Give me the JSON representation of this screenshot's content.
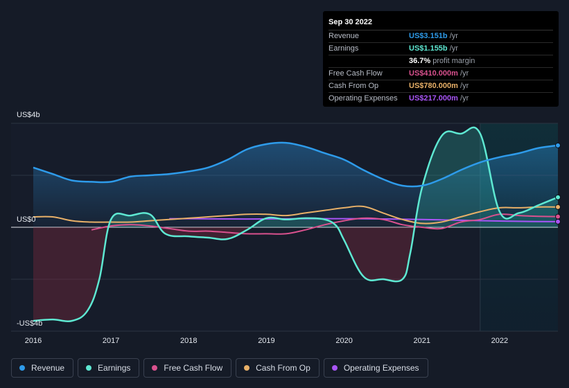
{
  "tooltip": {
    "date": "Sep 30 2022",
    "rows": [
      {
        "label": "Revenue",
        "value": "US$3.151b",
        "unit": " /yr",
        "color": "#2e9bea"
      },
      {
        "label": "Earnings",
        "value": "US$1.155b",
        "unit": " /yr",
        "color": "#5ee8d2"
      },
      {
        "label": "",
        "value": "36.7%",
        "unit": " profit margin",
        "color": "#ffffff"
      },
      {
        "label": "Free Cash Flow",
        "value": "US$410.000m",
        "unit": " /yr",
        "color": "#d9518e"
      },
      {
        "label": "Cash From Op",
        "value": "US$780.000m",
        "unit": " /yr",
        "color": "#e8b068"
      },
      {
        "label": "Operating Expenses",
        "value": "US$217.000m",
        "unit": " /yr",
        "color": "#a855f7"
      }
    ]
  },
  "legend": [
    {
      "label": "Revenue",
      "color": "#2e9bea"
    },
    {
      "label": "Earnings",
      "color": "#5ee8d2"
    },
    {
      "label": "Free Cash Flow",
      "color": "#d9518e"
    },
    {
      "label": "Cash From Op",
      "color": "#e8b068"
    },
    {
      "label": "Operating Expenses",
      "color": "#a855f7"
    }
  ],
  "chart_data": {
    "type": "area",
    "title": "",
    "y_unit": "US$ billions",
    "ylim": [
      -4,
      4
    ],
    "xlim": [
      2016.0,
      2022.75
    ],
    "y_tick_labels": [
      {
        "value": 4,
        "label": "US$4b"
      },
      {
        "value": 0,
        "label": "US$0"
      },
      {
        "value": -4,
        "label": "-US$4b"
      }
    ],
    "x_ticks": [
      {
        "value": 2016,
        "label": "2016"
      },
      {
        "value": 2017,
        "label": "2017"
      },
      {
        "value": 2018,
        "label": "2018"
      },
      {
        "value": 2019,
        "label": "2019"
      },
      {
        "value": 2020,
        "label": "2020"
      },
      {
        "value": 2021,
        "label": "2021"
      },
      {
        "value": 2022,
        "label": "2022"
      }
    ],
    "forecast_start": 2021.75,
    "series": [
      {
        "name": "Revenue",
        "color": "#2e9bea",
        "fill": true,
        "x": [
          2016.0,
          2016.25,
          2016.5,
          2016.75,
          2017.0,
          2017.25,
          2017.5,
          2017.75,
          2018.0,
          2018.25,
          2018.5,
          2018.75,
          2019.0,
          2019.25,
          2019.5,
          2019.75,
          2020.0,
          2020.25,
          2020.5,
          2020.75,
          2021.0,
          2021.25,
          2021.5,
          2021.75,
          2022.0,
          2022.25,
          2022.5,
          2022.75
        ],
        "y": [
          2.3,
          2.05,
          1.8,
          1.75,
          1.75,
          1.95,
          2.0,
          2.05,
          2.15,
          2.3,
          2.6,
          3.0,
          3.2,
          3.25,
          3.1,
          2.85,
          2.6,
          2.2,
          1.85,
          1.6,
          1.6,
          1.85,
          2.2,
          2.5,
          2.7,
          2.85,
          3.05,
          3.151
        ]
      },
      {
        "name": "Earnings",
        "color": "#5ee8d2",
        "fill": true,
        "x": [
          2016.0,
          2016.25,
          2016.5,
          2016.7,
          2016.85,
          2017.0,
          2017.25,
          2017.5,
          2017.7,
          2018.0,
          2018.25,
          2018.5,
          2018.75,
          2019.0,
          2019.25,
          2019.5,
          2019.75,
          2019.9,
          2020.0,
          2020.25,
          2020.5,
          2020.75,
          2020.85,
          2021.0,
          2021.25,
          2021.5,
          2021.75,
          2022.0,
          2022.25,
          2022.5,
          2022.75
        ],
        "y": [
          -3.6,
          -3.55,
          -3.6,
          -3.2,
          -2.0,
          0.3,
          0.45,
          0.5,
          -0.25,
          -0.35,
          -0.4,
          -0.45,
          -0.1,
          0.35,
          0.3,
          0.35,
          0.3,
          0.05,
          -0.5,
          -1.9,
          -2.0,
          -2.0,
          -1.0,
          1.5,
          3.5,
          3.6,
          3.6,
          0.6,
          0.55,
          0.85,
          1.155
        ]
      },
      {
        "name": "Free Cash Flow",
        "color": "#d9518e",
        "fill": false,
        "x": [
          2016.75,
          2017.0,
          2017.25,
          2017.5,
          2017.75,
          2018.0,
          2018.25,
          2018.5,
          2018.75,
          2019.0,
          2019.25,
          2019.5,
          2019.75,
          2020.0,
          2020.25,
          2020.5,
          2020.75,
          2021.0,
          2021.25,
          2021.5,
          2021.75,
          2022.0,
          2022.25,
          2022.5,
          2022.75
        ],
        "y": [
          -0.1,
          0.05,
          0.1,
          0.05,
          -0.05,
          -0.15,
          -0.15,
          -0.2,
          -0.25,
          -0.25,
          -0.25,
          -0.1,
          0.1,
          0.25,
          0.35,
          0.3,
          0.1,
          0.0,
          -0.05,
          0.2,
          0.3,
          0.5,
          0.45,
          0.42,
          0.41
        ]
      },
      {
        "name": "Cash From Op",
        "color": "#e8b068",
        "fill": false,
        "x": [
          2016.0,
          2016.25,
          2016.5,
          2016.75,
          2017.0,
          2017.25,
          2017.5,
          2017.75,
          2018.0,
          2018.25,
          2018.5,
          2018.75,
          2019.0,
          2019.25,
          2019.5,
          2019.75,
          2020.0,
          2020.25,
          2020.5,
          2020.75,
          2021.0,
          2021.25,
          2021.5,
          2021.75,
          2022.0,
          2022.25,
          2022.5,
          2022.75
        ],
        "y": [
          0.4,
          0.4,
          0.25,
          0.2,
          0.2,
          0.2,
          0.25,
          0.3,
          0.35,
          0.4,
          0.45,
          0.5,
          0.5,
          0.45,
          0.55,
          0.65,
          0.75,
          0.8,
          0.55,
          0.3,
          0.15,
          0.2,
          0.4,
          0.6,
          0.75,
          0.75,
          0.78,
          0.78
        ]
      },
      {
        "name": "Operating Expenses",
        "color": "#a855f7",
        "fill": false,
        "x": [
          2017.75,
          2018.0,
          2018.5,
          2019.0,
          2019.5,
          2020.0,
          2020.5,
          2021.0,
          2021.5,
          2022.0,
          2022.5,
          2022.75
        ],
        "y": [
          0.33,
          0.33,
          0.32,
          0.32,
          0.33,
          0.33,
          0.32,
          0.3,
          0.27,
          0.24,
          0.22,
          0.217
        ]
      }
    ]
  }
}
